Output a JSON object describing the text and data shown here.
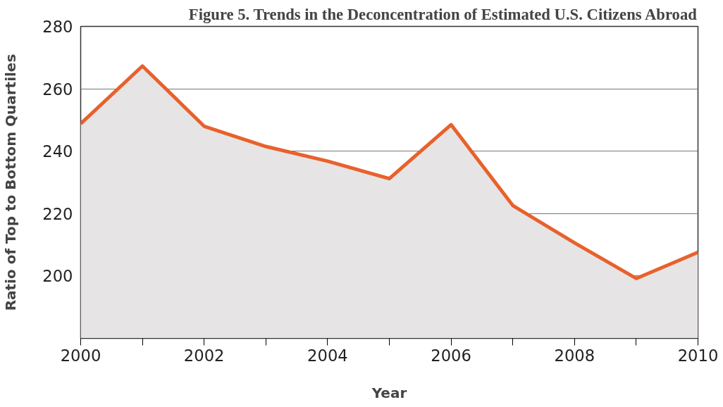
{
  "chart_data": {
    "type": "area",
    "title": "Figure 5. Trends in the Deconcentration of Estimated U.S. Citizens Abroad",
    "xlabel": "Year",
    "ylabel": "Ratio of Top to Bottom Quartiles",
    "x": [
      2000,
      2001,
      2002,
      2003,
      2004,
      2005,
      2006,
      2007,
      2008,
      2009,
      2010
    ],
    "series": [
      {
        "color": "#e8612c",
        "values": [
          248.8,
          267.3,
          248,
          241.5,
          236.8,
          231.2,
          248.5,
          222.6,
          210.6,
          199.2,
          207.6
        ]
      }
    ],
    "xlim": [
      2000,
      2010
    ],
    "ylim": [
      180,
      280
    ],
    "xticks": [
      2000,
      {
        "value": 2001,
        "label": null
      },
      2002,
      {
        "value": 2003,
        "label": null
      },
      2004,
      {
        "value": 2005,
        "label": null
      },
      2006,
      {
        "value": 2007,
        "label": null
      },
      2008,
      {
        "value": 2009,
        "label": null
      },
      2010
    ],
    "yticks": [
      200,
      220,
      240,
      260,
      280
    ],
    "grid": "y"
  }
}
